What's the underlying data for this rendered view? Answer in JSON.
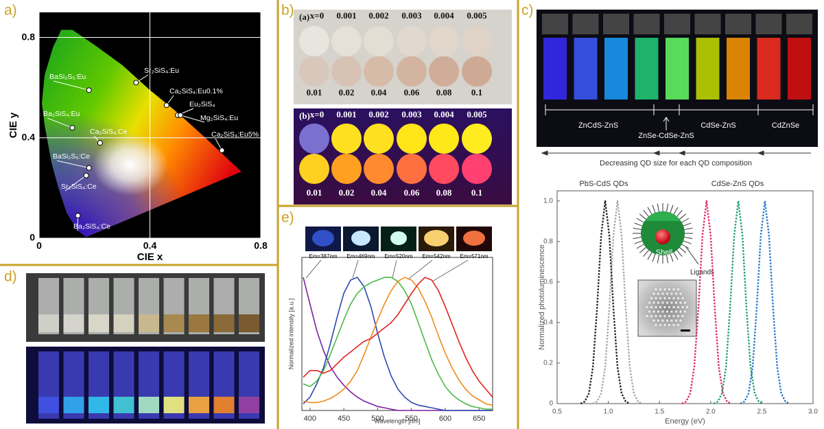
{
  "panel_labels": [
    "a)",
    "b)",
    "c)",
    "d)",
    "e)"
  ],
  "panel_b": {
    "photo_a_label": "(a)",
    "photo_b_label": "(b)",
    "top_row": [
      "x=0",
      "0.001",
      "0.002",
      "0.003",
      "0.004",
      "0.005"
    ],
    "bottom_row": [
      "0.01",
      "0.02",
      "0.04",
      "0.06",
      "0.08",
      "0.1"
    ]
  },
  "panel_c_photo": {
    "groups": [
      "ZnCdS-ZnS",
      "ZnSe-CdSe-ZnS",
      "CdSe-ZnS",
      "CdZnSe"
    ],
    "caption": "Decreasing QD size for each QD composition"
  },
  "chart_data": [
    {
      "type": "scatter",
      "xlabel": "CIE x",
      "ylabel": "CIE y",
      "xlim": [
        0,
        0.8
      ],
      "ylim": [
        0,
        0.9
      ],
      "xticks": [
        0,
        0.4,
        0.8
      ],
      "yticks": [
        0,
        0.4,
        0.8
      ],
      "grid": true,
      "point_labels": [
        "Sr₂SiS₄:Eu",
        "BaSi₂S₅:Eu",
        "Ca₂SiS₄:Eu0.1%",
        "Eu₂SiS₄",
        "Mg₂SiS₄:Eu",
        "Ca₂SiS₄:Eu5%",
        "Ba₂SiS₄:Eu",
        "Ca₂SiS₄:Ce",
        "BaSi₂S₅:Ce",
        "Sr₂SiS₄:Ce",
        "Ba₂SiS₄:Ce"
      ],
      "x": [
        0.35,
        0.18,
        0.46,
        0.5,
        0.51,
        0.66,
        0.12,
        0.22,
        0.18,
        0.17,
        0.14
      ],
      "values": [
        0.62,
        0.59,
        0.53,
        0.49,
        0.49,
        0.35,
        0.44,
        0.38,
        0.28,
        0.25,
        0.09
      ]
    },
    {
      "type": "line",
      "line_style": "dotted",
      "xlabel": "Energy (eV)",
      "ylabel": "Normalized photoluminescence",
      "annotations": [
        "PbS-CdS QDs",
        "CdSe-ZnS QDs",
        "Shell",
        "Ligands"
      ],
      "xlim": [
        0.5,
        3
      ],
      "ylim": [
        0,
        1.05
      ],
      "xticks": [
        0.5,
        {
          "value": 1,
          "label": "1.0"
        },
        1.5,
        {
          "value": 2,
          "label": "2.0"
        },
        2.5,
        {
          "value": 3,
          "label": "3.0"
        }
      ],
      "yticks": [
        0,
        0.2,
        0.4,
        0.6,
        0.8,
        {
          "value": 1,
          "label": "1.0"
        }
      ],
      "series": [
        {
          "color": "#222222",
          "x": [
            0.73,
            0.77,
            0.81,
            0.85,
            0.89,
            0.93,
            0.97,
            1.01,
            1.05,
            1.09,
            1.13,
            1.17,
            1.21
          ],
          "values": [
            0,
            0.01,
            0.05,
            0.18,
            0.47,
            0.83,
            1,
            0.83,
            0.47,
            0.18,
            0.05,
            0.01,
            0
          ]
        },
        {
          "color": "#a8a8a8",
          "x": [
            0.85,
            0.89,
            0.93,
            0.97,
            1.01,
            1.05,
            1.09,
            1.13,
            1.17,
            1.21,
            1.25,
            1.29,
            1.33
          ],
          "values": [
            0,
            0.01,
            0.05,
            0.18,
            0.47,
            0.83,
            1,
            0.83,
            0.47,
            0.18,
            0.05,
            0.01,
            0
          ]
        },
        {
          "color": "#e0286e",
          "x": [
            1.72,
            1.76,
            1.8,
            1.84,
            1.88,
            1.92,
            1.96,
            2.0,
            2.04,
            2.08,
            2.12,
            2.16,
            2.2
          ],
          "values": [
            0,
            0.01,
            0.05,
            0.18,
            0.47,
            0.83,
            1,
            0.83,
            0.47,
            0.18,
            0.05,
            0.01,
            0
          ]
        },
        {
          "color": "#1f9e6e",
          "x": [
            2.03,
            2.07,
            2.11,
            2.15,
            2.19,
            2.23,
            2.27,
            2.31,
            2.35,
            2.39,
            2.43,
            2.47,
            2.51
          ],
          "values": [
            0,
            0.01,
            0.05,
            0.18,
            0.47,
            0.83,
            1,
            0.83,
            0.47,
            0.18,
            0.05,
            0.01,
            0
          ]
        },
        {
          "color": "#2a78c8",
          "x": [
            2.29,
            2.33,
            2.37,
            2.41,
            2.45,
            2.49,
            2.53,
            2.57,
            2.61,
            2.65,
            2.69,
            2.73,
            2.77
          ],
          "values": [
            0,
            0.01,
            0.05,
            0.18,
            0.47,
            0.83,
            1,
            0.83,
            0.47,
            0.18,
            0.05,
            0.01,
            0
          ]
        }
      ]
    },
    {
      "type": "line",
      "xlabel": "Wavelength [nm]",
      "ylabel": "Normalized intensity [a.u.]",
      "xlim": [
        388,
        670
      ],
      "ylim": [
        0,
        1.15
      ],
      "xticks": [
        400,
        450,
        500,
        550,
        600,
        650
      ],
      "x": [
        390,
        400,
        410,
        420,
        430,
        440,
        450,
        460,
        470,
        480,
        490,
        500,
        510,
        520,
        530,
        540,
        550,
        560,
        570,
        580,
        590,
        600,
        610,
        620,
        630,
        640,
        650,
        660,
        670
      ],
      "series": [
        {
          "name": "Em=387nm",
          "color": "#7a1fa0",
          "values": [
            1.0,
            0.8,
            0.6,
            0.45,
            0.33,
            0.25,
            0.19,
            0.14,
            0.1,
            0.07,
            0.05,
            0.03,
            0.02,
            0.01,
            0,
            0,
            0,
            0,
            0,
            0,
            0,
            0,
            0,
            0,
            0,
            0,
            0,
            0,
            0
          ]
        },
        {
          "name": "Em=469nm",
          "color": "#2a48b0",
          "values": [
            0.05,
            0.1,
            0.2,
            0.32,
            0.5,
            0.7,
            0.88,
            0.98,
            1.0,
            0.93,
            0.78,
            0.58,
            0.4,
            0.26,
            0.16,
            0.1,
            0.06,
            0.04,
            0.03,
            0.02,
            0.01,
            0,
            0,
            0,
            0,
            0,
            0,
            0,
            0
          ]
        },
        {
          "name": "Em=520nm",
          "color": "#4cb848",
          "values": [
            0.2,
            0.18,
            0.22,
            0.3,
            0.42,
            0.55,
            0.68,
            0.8,
            0.88,
            0.93,
            0.96,
            0.98,
            1.0,
            1.0,
            0.97,
            0.9,
            0.8,
            0.66,
            0.52,
            0.38,
            0.27,
            0.18,
            0.12,
            0.08,
            0.05,
            0.03,
            0.02,
            0.01,
            0.01
          ]
        },
        {
          "name": "Em=542nm",
          "color": "#f08a1c",
          "values": [
            0.07,
            0.06,
            0.06,
            0.07,
            0.09,
            0.12,
            0.16,
            0.22,
            0.3,
            0.42,
            0.55,
            0.68,
            0.8,
            0.9,
            0.97,
            1.0,
            0.98,
            0.92,
            0.82,
            0.7,
            0.56,
            0.43,
            0.32,
            0.23,
            0.16,
            0.11,
            0.08,
            0.05,
            0.04
          ]
        },
        {
          "name": "Em=571nm",
          "color": "#e3201c",
          "values": [
            0.25,
            0.3,
            0.3,
            0.28,
            0.3,
            0.35,
            0.4,
            0.44,
            0.48,
            0.52,
            0.54,
            0.58,
            0.62,
            0.66,
            0.72,
            0.8,
            0.88,
            0.95,
            1.0,
            0.98,
            0.9,
            0.78,
            0.65,
            0.52,
            0.4,
            0.3,
            0.22,
            0.16,
            0.1
          ]
        }
      ]
    }
  ]
}
